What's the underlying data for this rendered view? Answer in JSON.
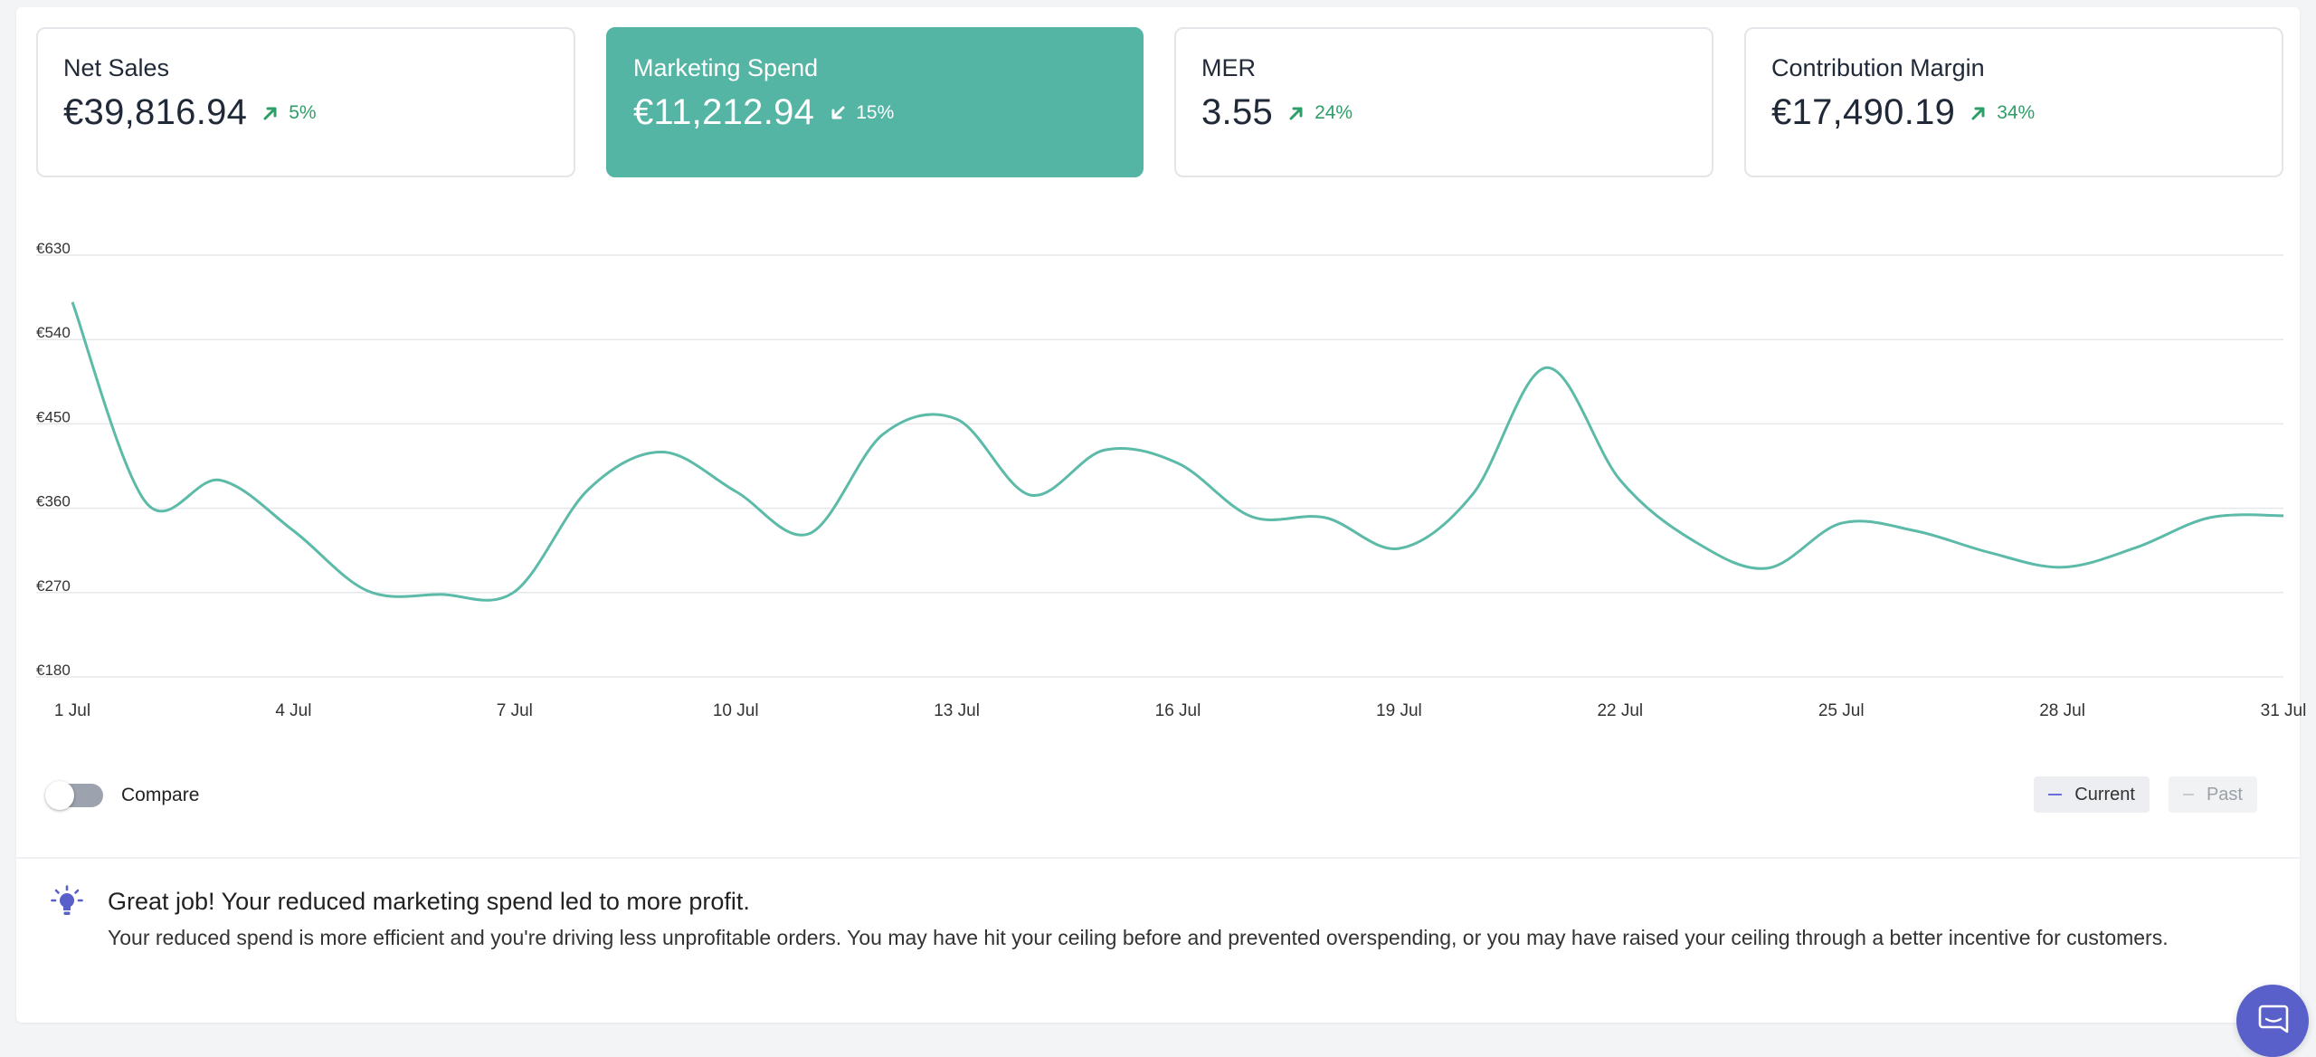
{
  "kpis": [
    {
      "title": "Net Sales",
      "value": "€39,816.94",
      "change": "5%",
      "direction": "up",
      "active": false
    },
    {
      "title": "Marketing Spend",
      "value": "€11,212.94",
      "change": "15%",
      "direction": "down",
      "active": true
    },
    {
      "title": "MER",
      "value": "3.55",
      "change": "24%",
      "direction": "up",
      "active": false
    },
    {
      "title": "Contribution Margin",
      "value": "€17,490.19",
      "change": "34%",
      "direction": "up",
      "active": false
    }
  ],
  "colors": {
    "accent": "#55b5a5",
    "positive": "#2f9e68",
    "line": "#5cbaa9",
    "grid": "#e5e7eb",
    "current_legend": "#6b6ed8",
    "chat": "#5a60c9"
  },
  "chart_data": {
    "type": "line",
    "x": [
      "1 Jul",
      "2 Jul",
      "3 Jul",
      "4 Jul",
      "5 Jul",
      "6 Jul",
      "7 Jul",
      "8 Jul",
      "9 Jul",
      "10 Jul",
      "11 Jul",
      "12 Jul",
      "13 Jul",
      "14 Jul",
      "15 Jul",
      "16 Jul",
      "17 Jul",
      "18 Jul",
      "19 Jul",
      "20 Jul",
      "21 Jul",
      "22 Jul",
      "23 Jul",
      "24 Jul",
      "25 Jul",
      "26 Jul",
      "27 Jul",
      "28 Jul",
      "29 Jul",
      "30 Jul",
      "31 Jul"
    ],
    "series": [
      {
        "name": "Current",
        "values": [
          580,
          366,
          390,
          336,
          272,
          268,
          271,
          380,
          420,
          378,
          333,
          439,
          455,
          374,
          422,
          408,
          351,
          350,
          317,
          375,
          510,
          390,
          325,
          296,
          344,
          336,
          313,
          297,
          318,
          350,
          352
        ]
      }
    ],
    "tick_labels": [
      "1 Jul",
      "4 Jul",
      "7 Jul",
      "10 Jul",
      "13 Jul",
      "16 Jul",
      "19 Jul",
      "22 Jul",
      "25 Jul",
      "28 Jul",
      "31 Jul"
    ],
    "y_ticks": [
      "€180",
      "€270",
      "€360",
      "€450",
      "€540",
      "€630"
    ],
    "ylim": [
      180,
      630
    ],
    "grid": true,
    "legend": "bottom-right"
  },
  "controls": {
    "compare_label": "Compare",
    "legend_current": "Current",
    "legend_past": "Past"
  },
  "insight": {
    "icon": "lightbulb-icon",
    "title": "Great job! Your reduced marketing spend led to more profit.",
    "text": "Your reduced spend is more efficient and you're driving less unprofitable orders. You may have hit your ceiling before and prevented overspending, or you may have raised your ceiling through a better incentive for customers."
  },
  "chat_icon": "chat-icon"
}
